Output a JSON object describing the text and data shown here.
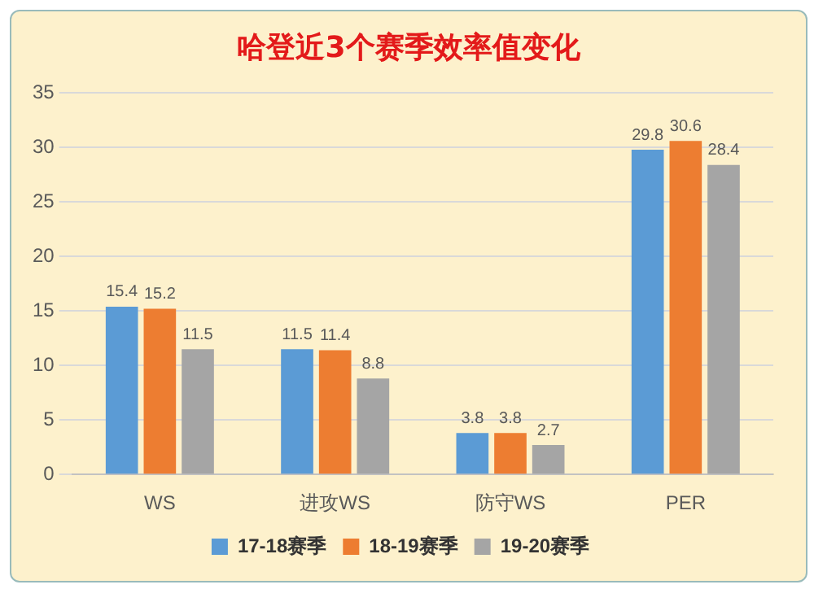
{
  "chart_data": {
    "type": "bar",
    "title": "哈登近3个赛季效率值变化",
    "categories": [
      "WS",
      "进攻WS",
      "防守WS",
      "PER"
    ],
    "series": [
      {
        "name": "17-18赛季",
        "color": "#5b9bd5",
        "values": [
          15.4,
          11.5,
          3.8,
          29.8
        ]
      },
      {
        "name": "18-19赛季",
        "color": "#ed7d31",
        "values": [
          15.2,
          11.4,
          3.8,
          30.6
        ]
      },
      {
        "name": "19-20赛季",
        "color": "#a5a5a5",
        "values": [
          11.5,
          8.8,
          2.7,
          28.4
        ]
      }
    ],
    "ylim": [
      0,
      35
    ],
    "yticks": [
      0,
      5,
      10,
      15,
      20,
      25,
      30,
      35
    ],
    "grid": "y",
    "legend": "bottom",
    "data_labels": true
  }
}
